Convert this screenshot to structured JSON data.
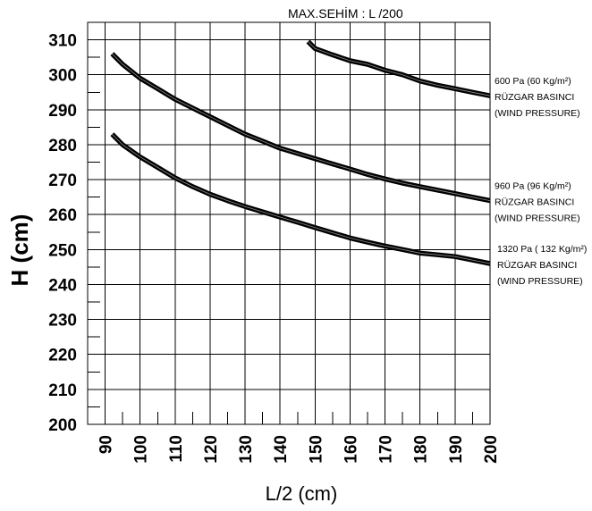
{
  "chart_data": {
    "type": "line",
    "title": "MAX.SEHİM :  L /200",
    "xlabel": "L/2  (cm)",
    "ylabel": "H (cm)",
    "xlim": [
      85,
      200
    ],
    "ylim": [
      200,
      315
    ],
    "xticks": [
      90,
      100,
      110,
      120,
      130,
      140,
      150,
      160,
      170,
      180,
      190,
      200
    ],
    "yticks": [
      200,
      210,
      220,
      230,
      240,
      250,
      260,
      270,
      280,
      290,
      300,
      310
    ],
    "grid": true,
    "series": [
      {
        "name": "600 Pa (60 Kg/m²)",
        "labels": [
          "600 Pa (60 Kg/m²)",
          "RÜZGAR BASINCI",
          "(WIND PRESSURE)"
        ],
        "x": [
          148,
          150,
          155,
          160,
          165,
          170,
          175,
          180,
          185,
          190,
          195,
          200
        ],
        "y": [
          309.5,
          307.5,
          305.7,
          304,
          303,
          301.3,
          300,
          298.2,
          297,
          296,
          295,
          294
        ]
      },
      {
        "name": "960 Pa (96 Kg/m²)",
        "labels": [
          "960 Pa (96 Kg/m²)",
          "RÜZGAR BASINCI",
          "(WIND PRESSURE)"
        ],
        "x": [
          92,
          95,
          100,
          105,
          110,
          115,
          120,
          125,
          130,
          135,
          140,
          145,
          150,
          155,
          160,
          165,
          170,
          175,
          180,
          185,
          190,
          195,
          200
        ],
        "y": [
          306,
          303,
          299,
          296,
          293,
          290.5,
          288,
          285.5,
          283,
          281,
          279,
          277.5,
          276,
          274.5,
          273,
          271.5,
          270.2,
          269,
          268,
          267,
          266,
          265,
          264
        ]
      },
      {
        "name": "1320 Pa ( 132 Kg/m²)",
        "labels": [
          "1320 Pa ( 132 Kg/m²)",
          "RÜZGAR BASINCI",
          "(WIND PRESSURE)"
        ],
        "x": [
          92,
          95,
          100,
          105,
          110,
          115,
          120,
          125,
          130,
          135,
          140,
          145,
          150,
          155,
          160,
          165,
          170,
          175,
          180,
          185,
          190,
          195,
          200
        ],
        "y": [
          283,
          280,
          276.5,
          273.5,
          270.5,
          268,
          265.8,
          264,
          262.3,
          260.8,
          259.3,
          257.8,
          256.3,
          254.8,
          253.3,
          252.1,
          251,
          250,
          249,
          248.5,
          248,
          247,
          246
        ]
      }
    ]
  }
}
